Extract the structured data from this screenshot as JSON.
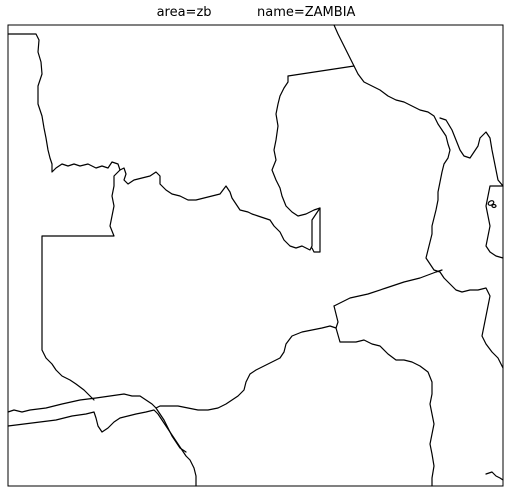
{
  "map": {
    "title_area": "area=zb",
    "title_name": "name=ZAMBIA",
    "line_color": "#000000",
    "background_color": "#ffffff"
  }
}
